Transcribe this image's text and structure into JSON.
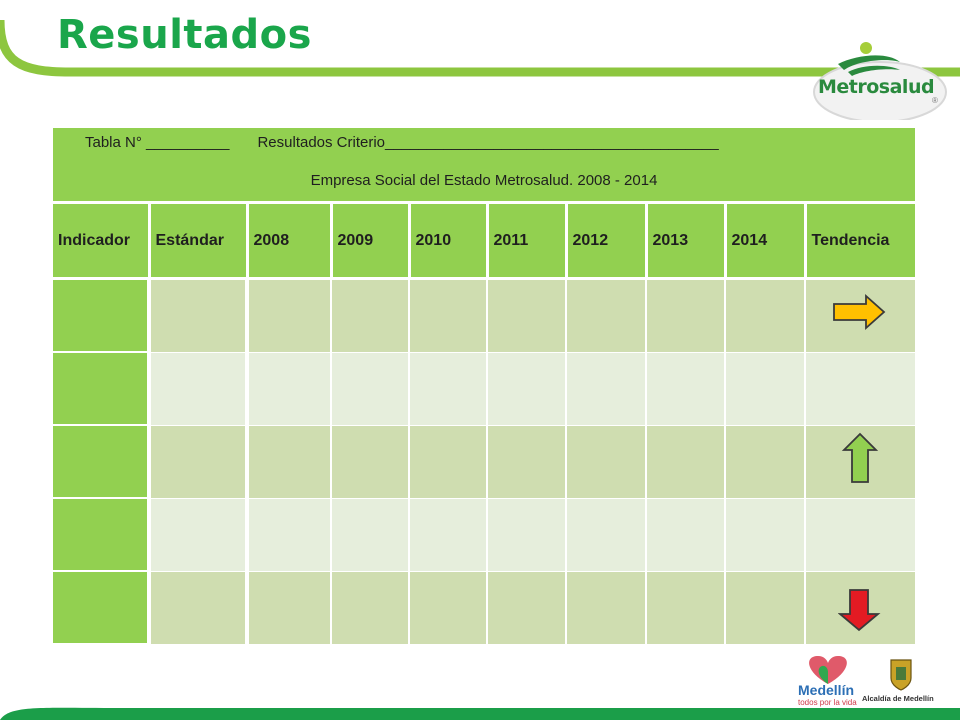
{
  "colors": {
    "title_green": "#1aa64b",
    "header_green": "#92d050",
    "row_dark": "#cfddb0",
    "row_light": "#e6eedc",
    "arrow_right": "#ffc000",
    "arrow_up": "#92d050",
    "arrow_down": "#e31b23"
  },
  "title": "Resultados",
  "logo": {
    "name": "Metrosalud",
    "registered": "®",
    "icon": "metrosalud-figure-icon"
  },
  "table": {
    "caption_tabla": "Tabla N°",
    "caption_blank1": "__________",
    "caption_resultados": "Resultados Criterio",
    "caption_blank2": "________________________________________",
    "subtitle": "Empresa Social del Estado Metrosalud.  2008 - 2014",
    "columns": [
      "Indicador",
      "Estándar",
      "2008",
      "2009",
      "2010",
      "2011",
      "2012",
      "2013",
      "2014",
      "Tendencia"
    ],
    "rows": [
      {
        "cells": [
          "",
          "",
          "",
          "",
          "",
          "",
          "",
          "",
          ""
        ],
        "trend": "right-arrow-icon"
      },
      {
        "cells": [
          "",
          "",
          "",
          "",
          "",
          "",
          "",
          "",
          ""
        ],
        "trend": ""
      },
      {
        "cells": [
          "",
          "",
          "",
          "",
          "",
          "",
          "",
          "",
          ""
        ],
        "trend": "up-arrow-icon"
      },
      {
        "cells": [
          "",
          "",
          "",
          "",
          "",
          "",
          "",
          "",
          ""
        ],
        "trend": ""
      },
      {
        "cells": [
          "",
          "",
          "",
          "",
          "",
          "",
          "",
          "",
          ""
        ],
        "trend": "down-arrow-icon"
      }
    ]
  },
  "footer": {
    "medellin_name": "Medellín",
    "medellin_slogan": "todos por la vida",
    "alcaldia": "Alcaldía de Medellín"
  }
}
